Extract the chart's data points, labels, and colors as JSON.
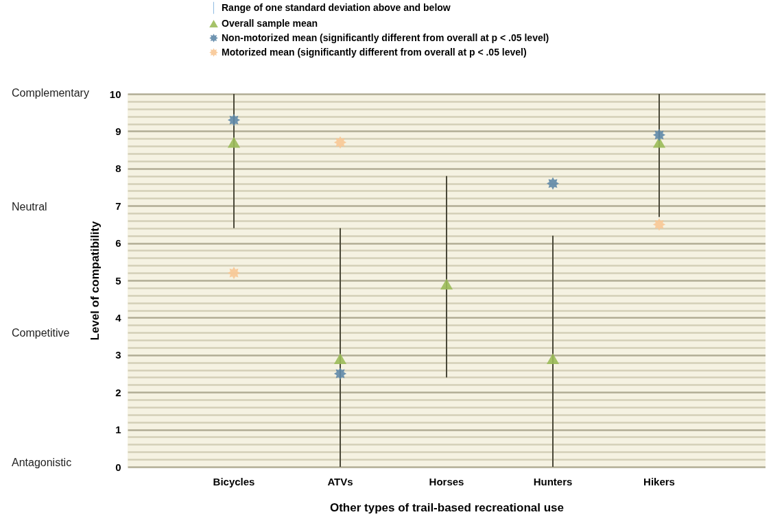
{
  "chart_data": {
    "type": "scatter",
    "xlabel": "Other types of trail-based recreational use",
    "ylabel": "Level of compatibility",
    "categories": [
      "Bicycles",
      "ATVs",
      "Horses",
      "Hunters",
      "Hikers"
    ],
    "series": [
      {
        "name": "Overall sample mean",
        "color": "#9bbb59",
        "marker": "triangle",
        "values": [
          8.7,
          2.9,
          4.9,
          2.9,
          8.7
        ],
        "errors": [
          [
            6.4,
            10
          ],
          [
            0,
            6.4
          ],
          [
            2.4,
            7.8
          ],
          [
            0,
            6.2
          ],
          [
            6.7,
            10
          ]
        ]
      },
      {
        "name": "Non-motorized mean (significantly different from overall at p < .05 level)",
        "color": "#5f88a8",
        "marker": "star",
        "values": [
          9.3,
          2.5,
          null,
          7.6,
          8.9
        ]
      },
      {
        "name": "Motorized mean (significantly different from overall at p < .05 level)",
        "color": "#f8c896",
        "marker": "star",
        "values": [
          5.2,
          8.7,
          null,
          null,
          6.5
        ]
      }
    ],
    "ylim": [
      0,
      10
    ],
    "yticks": [
      0,
      {
        "value": 0.2,
        "label": null
      },
      {
        "value": 0.4,
        "label": null
      },
      {
        "value": 0.6,
        "label": null
      },
      {
        "value": 0.8,
        "label": null
      },
      1,
      {
        "value": 1.2,
        "label": null
      },
      {
        "value": 1.4,
        "label": null
      },
      {
        "value": 1.6,
        "label": null
      },
      {
        "value": 1.8,
        "label": null
      },
      2,
      {
        "value": 2.2,
        "label": null
      },
      {
        "value": 2.4,
        "label": null
      },
      {
        "value": 2.6,
        "label": null
      },
      {
        "value": 2.8,
        "label": null
      },
      3,
      {
        "value": 3.2,
        "label": null
      },
      {
        "value": 3.4,
        "label": null
      },
      {
        "value": 3.6,
        "label": null
      },
      {
        "value": 3.8,
        "label": null
      },
      4,
      {
        "value": 4.2,
        "label": null
      },
      {
        "value": 4.4,
        "label": null
      },
      {
        "value": 4.6,
        "label": null
      },
      {
        "value": 4.8,
        "label": null
      },
      5,
      {
        "value": 5.2,
        "label": null
      },
      {
        "value": 5.4,
        "label": null
      },
      {
        "value": 5.6,
        "label": null
      },
      {
        "value": 5.8,
        "label": null
      },
      6,
      {
        "value": 6.2,
        "label": null
      },
      {
        "value": 6.4,
        "label": null
      },
      {
        "value": 6.6,
        "label": null
      },
      {
        "value": 6.8,
        "label": null
      },
      7,
      {
        "value": 7.2,
        "label": null
      },
      {
        "value": 7.4,
        "label": null
      },
      {
        "value": 7.6,
        "label": null
      },
      {
        "value": 7.8,
        "label": null
      },
      8,
      {
        "value": 8.2,
        "label": null
      },
      {
        "value": 8.4,
        "label": null
      },
      {
        "value": 8.6,
        "label": null
      },
      {
        "value": 8.8,
        "label": null
      },
      9,
      {
        "value": 9.2,
        "label": null
      },
      {
        "value": 9.4,
        "label": null
      },
      {
        "value": 9.6,
        "label": null
      },
      {
        "value": 9.8,
        "label": null
      },
      10
    ],
    "grid": "y",
    "legend": "top",
    "annotations": [
      "Range of one standard deviation above and below",
      "Complementary",
      "Neutral",
      "Competitive",
      "Antagonistic"
    ]
  }
}
